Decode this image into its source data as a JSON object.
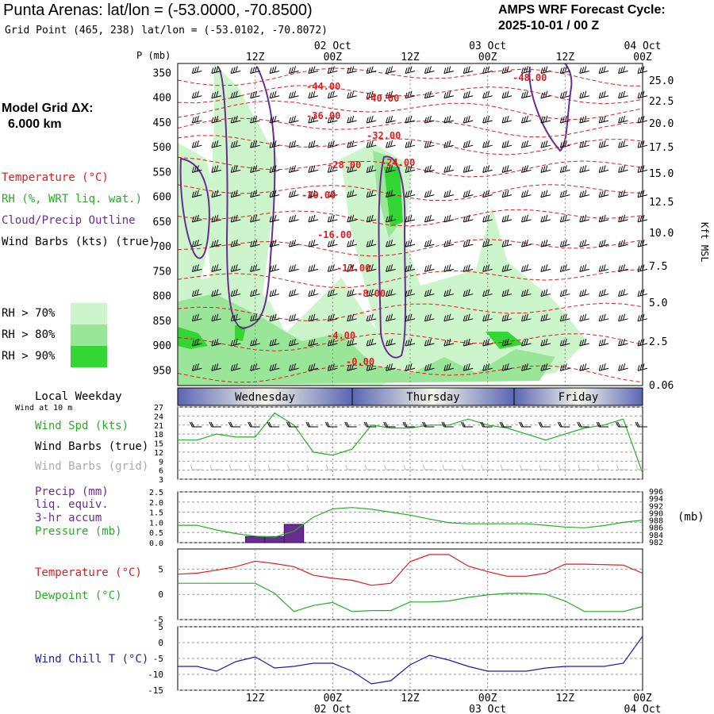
{
  "header": {
    "title": "Punta Arenas:  lat/lon = (-53.0000, -70.8500)",
    "subtitle": "Grid Point (465, 238) lat/lon = (-53.0102, -70.8072)",
    "cycle_line1": "AMPS WRF Forecast Cycle:",
    "cycle_line2": "2025-10-01 / 00  Z"
  },
  "sidebar": {
    "model_grid_line1": "Model Grid ΔX:",
    "model_grid_line2": "6.000 km",
    "legend": {
      "temperature": "Temperature (°C)",
      "rh": "RH (%, WRT liq. wat.)",
      "cloud": "Cloud/Precip Outline",
      "barbs": "Wind Barbs (kts) (true)"
    },
    "rh_keys": [
      {
        "label": "RH > 70%",
        "color": "#ccf5cc"
      },
      {
        "label": "RH > 80%",
        "color": "#99e699"
      },
      {
        "label": "RH > 90%",
        "color": "#33d633"
      }
    ],
    "local_weekday": "Local Weekday",
    "wind_at": "Wind at 10 m",
    "wind_labels": {
      "spd": "Wind Spd (kts)",
      "barbs_true": "Wind Barbs (true)",
      "barbs_grid": "Wind Barbs (grid)"
    },
    "precip_labels": {
      "l1": "Precip (mm)",
      "l2": "liq. equiv.",
      "l3": "3-hr accum",
      "l4": "Pressure (mb)"
    },
    "temp_labels": {
      "temp": "Temperature (°C)",
      "dew": "Dewpoint (°C)"
    },
    "windchill_label": "Wind Chill T (°C)"
  },
  "colors": {
    "temperature": "#e41a1c",
    "rh": "#22b022",
    "cloud": "#6a2c91",
    "windchill": "#1a1ab0",
    "weekday_band": "#5a66b4"
  },
  "chart_data": [
    {
      "type": "heatmap",
      "name": "cross-section",
      "y_left_label": "P (mb)",
      "y_left_ticks": [
        "350",
        "400",
        "450",
        "500",
        "550",
        "600",
        "650",
        "700",
        "750",
        "800",
        "850",
        "900",
        "950"
      ],
      "y_right_label": "Kft MSL",
      "y_right_ticks": [
        "25.0",
        "22.5",
        "20.0",
        "17.5",
        "15.0",
        "12.5",
        "10.0",
        "7.5",
        "5.0",
        "2.5",
        "0.06"
      ],
      "x_top_times": [
        "12Z",
        "00Z",
        "12Z",
        "00Z",
        "12Z",
        "00Z"
      ],
      "x_top_dates": [
        "02 Oct",
        "03 Oct",
        "04 Oct"
      ],
      "temperature_contour_labels": [
        "-44.00",
        "-40.00",
        "-36.00",
        "-32.00",
        "-28.00",
        "-24.00",
        "-20.00",
        "-16.00",
        "-12.00",
        "-8.00",
        "-4.00",
        "-0.00",
        "-48.00"
      ]
    },
    {
      "type": "line",
      "name": "wind",
      "weekdays": [
        "Wednesday",
        "Thursday",
        "Friday"
      ],
      "y_ticks": [
        "27",
        "24",
        "21",
        "18",
        "15",
        "12",
        "9",
        "6",
        "3"
      ],
      "ylim": [
        3,
        27
      ],
      "wind_speed_kts": [
        16,
        16,
        18,
        17,
        17,
        25,
        21,
        12,
        11,
        13,
        21,
        20,
        20,
        21,
        21,
        23,
        21,
        20,
        18,
        16,
        18,
        20,
        21,
        23,
        5
      ]
    },
    {
      "type": "bar",
      "name": "precip-pressure",
      "y_left_ticks": [
        "2.5",
        "2.0",
        "1.5",
        "1.0",
        "0.5",
        "0.0"
      ],
      "y_right_ticks": [
        "996",
        "994",
        "992",
        "990",
        "988",
        "986",
        "984",
        "982"
      ],
      "y_right_unit": "(mb)",
      "ylim_precip": [
        0,
        2.5
      ],
      "ylim_pressure": [
        982,
        996
      ],
      "precip_mm": [
        0,
        0,
        0,
        0,
        0.3,
        0.3,
        0.9,
        0,
        0,
        0,
        0,
        0,
        0,
        0,
        0,
        0,
        0,
        0,
        0,
        0,
        0,
        0,
        0,
        0,
        0
      ],
      "pressure_mb": [
        986.8,
        986.8,
        985.5,
        984.5,
        983.8,
        983.5,
        985.2,
        989.0,
        991.3,
        991.7,
        991.2,
        990.4,
        989.6,
        988.5,
        987.5,
        987.2,
        987.2,
        987.2,
        987.2,
        986.8,
        986.3,
        986.1,
        986.7,
        987.6,
        988.2
      ]
    },
    {
      "type": "line",
      "name": "temp-dewpoint",
      "y_ticks": [
        "5",
        "0",
        "-5"
      ],
      "ylim": [
        -5,
        9
      ],
      "temperature": [
        4,
        4.2,
        4.8,
        5.5,
        6.6,
        6.1,
        5.5,
        3.8,
        3.2,
        2.8,
        1.8,
        2.2,
        6.5,
        7.9,
        7.9,
        5.6,
        4.5,
        3.6,
        3.6,
        4.2,
        6.0,
        6.0,
        5.9,
        5.8,
        4.2
      ],
      "dewpoint": [
        2.2,
        2.2,
        2.2,
        2.2,
        2.2,
        0.2,
        -3.4,
        -2.2,
        -1.6,
        -3.4,
        -3.2,
        -3.2,
        -1.5,
        -1.5,
        -1.3,
        -0.6,
        -0.1,
        0.2,
        0.2,
        0.0,
        -1.3,
        -3.4,
        -3.4,
        -3.4,
        -2.4
      ]
    },
    {
      "type": "line",
      "name": "windchill",
      "y_ticks": [
        "5",
        "0",
        "-5",
        "-10",
        "-15"
      ],
      "ylim": [
        -15,
        5
      ],
      "x_times": [
        "12Z",
        "00Z",
        "12Z",
        "00Z",
        "12Z",
        "00Z"
      ],
      "x_dates": [
        "02 Oct",
        "03 Oct",
        "04 Oct"
      ],
      "windchill": [
        -7.5,
        -7.5,
        -9,
        -6,
        -4.5,
        -8,
        -7.5,
        -6.5,
        -6.5,
        -9,
        -13,
        -12,
        -7,
        -4,
        -5.5,
        -7.5,
        -9,
        -9,
        -9,
        -8,
        -7.5,
        -7.5,
        -7.5,
        -6.5,
        2
      ]
    }
  ]
}
